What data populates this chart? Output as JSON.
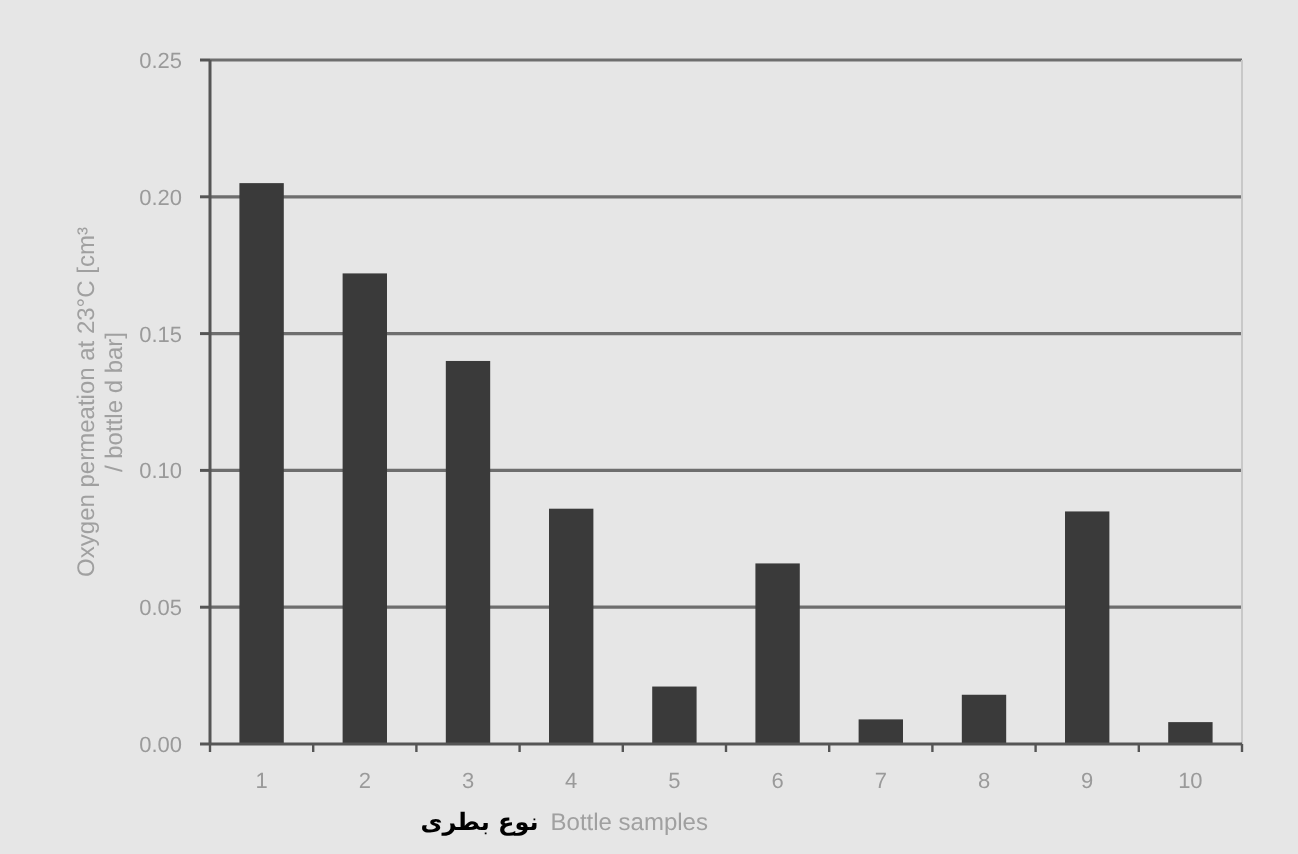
{
  "chart_data": {
    "type": "bar",
    "xlabel": "Bottle samples",
    "ylabel": "Oxygen permeation at 23°C [cm³ / bottle d bar]",
    "categories": [
      "1",
      "2",
      "3",
      "4",
      "5",
      "6",
      "7",
      "8",
      "9",
      "10"
    ],
    "values": [
      0.205,
      0.172,
      0.14,
      0.086,
      0.021,
      0.066,
      0.009,
      0.018,
      0.085,
      0.008
    ],
    "color": "#3a3a3a",
    "ylim": [
      0,
      0.25
    ],
    "yticks": [
      {
        "value": 0,
        "label": "0.00"
      },
      {
        "value": 0.05,
        "label": "0.05"
      },
      {
        "value": 0.1,
        "label": "0.10"
      },
      {
        "value": 0.15,
        "label": "0.15"
      },
      {
        "value": 0.2,
        "label": "0.20"
      },
      {
        "value": 0.25,
        "label": "0.25"
      }
    ],
    "grid": "y",
    "annotations": [
      "نوع بطری"
    ]
  }
}
